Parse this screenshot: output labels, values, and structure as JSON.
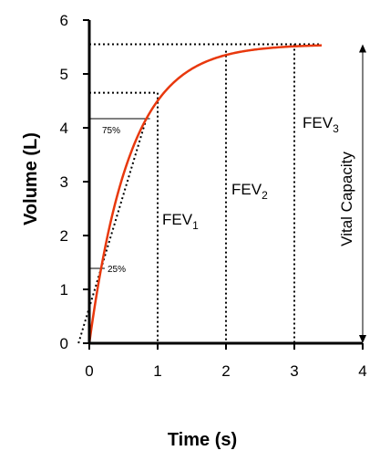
{
  "chart_data": {
    "type": "line",
    "xlabel": "Time (s)",
    "ylabel": "Volume (L)",
    "xlim": [
      0,
      4
    ],
    "ylim": [
      0,
      6
    ],
    "x_ticks": [
      "0",
      "1",
      "2",
      "3",
      "4"
    ],
    "y_ticks": [
      "0",
      "1",
      "2",
      "3",
      "4",
      "5",
      "6"
    ],
    "grid": false,
    "curve": {
      "color": "#e8380d",
      "vital_capacity": 5.55,
      "time_constant": 0.6,
      "x_end": 3.4
    },
    "fev_levels": [
      {
        "x": 1,
        "y": 4.65,
        "label": "FEV",
        "sub": "1"
      },
      {
        "x": 2,
        "y": 5.43,
        "label": "FEV",
        "sub": "2"
      },
      {
        "x": 3,
        "y": 5.55,
        "label": "FEV",
        "sub": "3"
      }
    ],
    "percent_markers": [
      {
        "label": "75%",
        "y": 4.17
      },
      {
        "label": "25%",
        "y": 1.39
      }
    ],
    "vital_capacity_label": "Vital Capacity"
  }
}
